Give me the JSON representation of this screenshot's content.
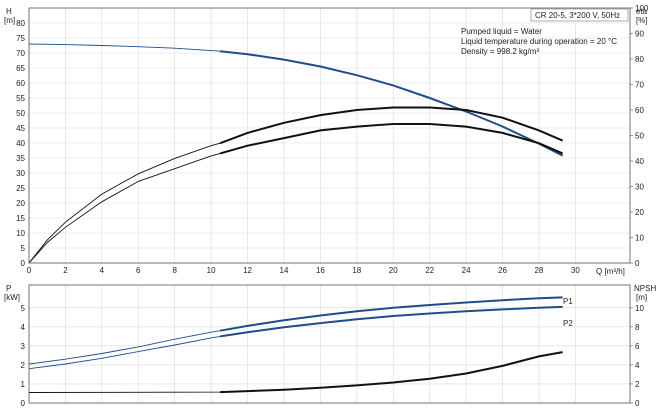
{
  "info": {
    "model": "CR 20-5, 3*200 V, 50Hz",
    "lines": [
      "Pumped liquid = Water",
      "Liquid temperature during operation = 20 °C",
      "Density = 998.2 kg/m³"
    ]
  },
  "chart_data": [
    {
      "type": "line",
      "panel": "top",
      "ylabel_left": [
        "H",
        "[m]"
      ],
      "ylabel_right": [
        "eta",
        "[%]"
      ],
      "xlabel": "Q [m³/h]",
      "xlim": [
        0,
        33
      ],
      "ylim_left": [
        0,
        85
      ],
      "ylim_right": [
        0,
        100
      ],
      "x_ticks": [
        0,
        2,
        4,
        6,
        8,
        10,
        12,
        14,
        16,
        18,
        20,
        22,
        24,
        26,
        28,
        30
      ],
      "y_ticks_left": [
        0,
        5,
        10,
        15,
        20,
        25,
        30,
        35,
        40,
        45,
        50,
        55,
        60,
        65,
        70,
        75,
        80
      ],
      "y_ticks_right": [
        0,
        10,
        20,
        30,
        40,
        50,
        60,
        70,
        80,
        90,
        100
      ],
      "grid": true,
      "series": [
        {
          "key": "H",
          "color": "#1f4e8c",
          "axis": "left",
          "x": [
            0,
            2,
            4,
            6,
            8,
            10,
            10.5,
            12,
            14,
            16,
            18,
            20,
            22,
            24,
            26,
            28,
            29.3
          ],
          "y": [
            73.0,
            72.8,
            72.5,
            72.1,
            71.6,
            70.8,
            70.6,
            69.6,
            67.8,
            65.5,
            62.6,
            59.2,
            55.0,
            50.5,
            45.5,
            39.8,
            35.8
          ]
        },
        {
          "key": "eta",
          "color": "#111111",
          "axis": "right",
          "x": [
            0,
            1,
            2,
            4,
            6,
            8,
            10,
            10.5,
            12,
            14,
            16,
            18,
            20,
            22,
            24,
            26,
            28,
            29.3
          ],
          "y": [
            0,
            9,
            16,
            27,
            35,
            41,
            46,
            47,
            51,
            55,
            58,
            60,
            61,
            61,
            60,
            57,
            52,
            48
          ]
        },
        {
          "key": "eta_p",
          "color": "#111111",
          "axis": "right",
          "x": [
            0,
            1,
            2,
            4,
            6,
            8,
            10,
            10.5,
            12,
            14,
            16,
            18,
            20,
            22,
            24,
            26,
            28,
            29.3
          ],
          "y": [
            0,
            8,
            14,
            24,
            32,
            37,
            42,
            43,
            46,
            49,
            52,
            53.5,
            54.5,
            54.5,
            53.5,
            51,
            47,
            43
          ]
        }
      ]
    },
    {
      "type": "line",
      "panel": "bottom",
      "ylabel_left": [
        "P",
        "[kW]"
      ],
      "ylabel_right": [
        "NPSH",
        "[m]"
      ],
      "xlim": [
        0,
        33
      ],
      "ylim_left": [
        0,
        6.2
      ],
      "ylim_right": [
        0,
        12.4
      ],
      "y_ticks_left": [
        0,
        1,
        2,
        3,
        4,
        5
      ],
      "y_ticks_right": [
        0,
        2,
        4,
        6,
        8,
        10
      ],
      "grid": true,
      "series": [
        {
          "name": "P1",
          "color": "#1f4e8c",
          "axis": "left",
          "x": [
            0,
            2,
            4,
            6,
            8,
            10,
            10.5,
            12,
            14,
            16,
            18,
            20,
            22,
            24,
            26,
            28,
            29.3
          ],
          "y": [
            2.05,
            2.3,
            2.6,
            2.95,
            3.35,
            3.72,
            3.8,
            4.05,
            4.35,
            4.6,
            4.82,
            5.0,
            5.15,
            5.28,
            5.4,
            5.5,
            5.55
          ]
        },
        {
          "name": "P2",
          "color": "#1f4e8c",
          "axis": "left",
          "x": [
            0,
            2,
            4,
            6,
            8,
            10,
            10.5,
            12,
            14,
            16,
            18,
            20,
            22,
            24,
            26,
            28,
            29.3
          ],
          "y": [
            1.8,
            2.05,
            2.35,
            2.7,
            3.05,
            3.42,
            3.5,
            3.72,
            3.98,
            4.2,
            4.4,
            4.57,
            4.7,
            4.82,
            4.92,
            5.0,
            5.05
          ]
        },
        {
          "key": "NPSH",
          "color": "#111111",
          "axis": "right",
          "x": [
            0,
            10.5,
            12,
            14,
            16,
            18,
            20,
            22,
            24,
            26,
            28,
            29.3
          ],
          "y": [
            1.1,
            1.15,
            1.25,
            1.4,
            1.6,
            1.85,
            2.15,
            2.55,
            3.1,
            3.9,
            4.9,
            5.35
          ]
        }
      ]
    }
  ]
}
